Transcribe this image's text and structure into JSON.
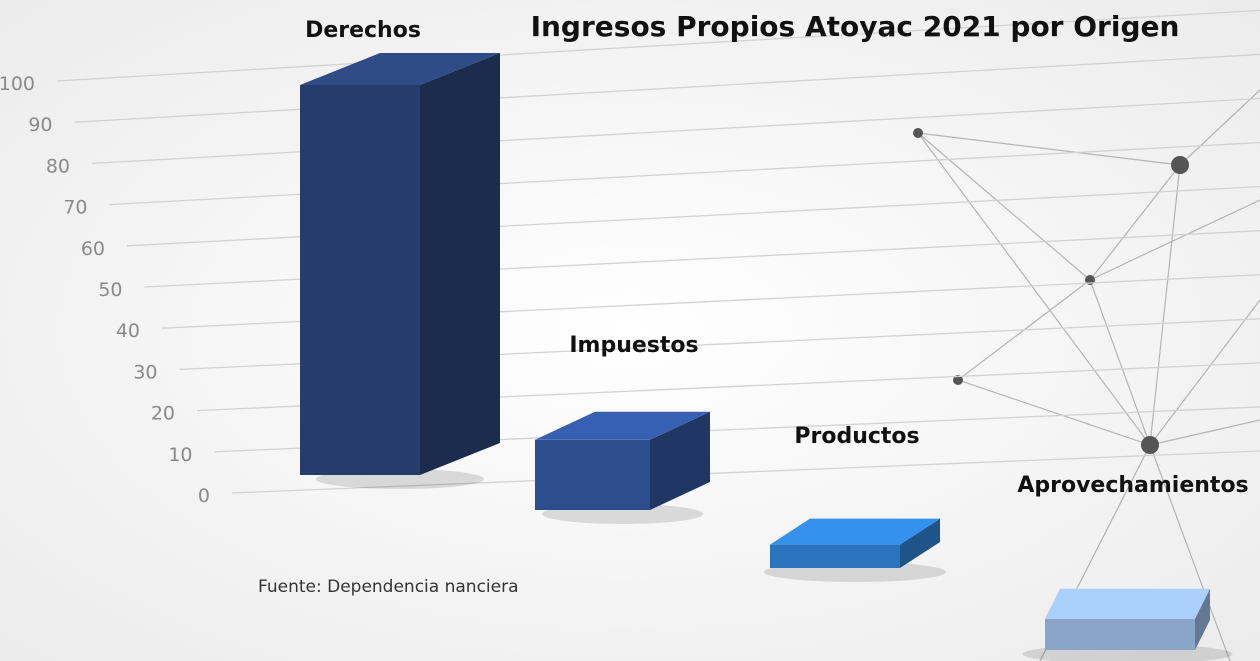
{
  "chart_data": {
    "type": "bar3d",
    "title": "Ingresos Propios Atoyac 2021 por Origen",
    "categories": [
      "Derechos",
      "Impuestos",
      "Productos",
      "Aprovechamientos"
    ],
    "values": [
      100,
      18,
      6,
      8
    ],
    "colors": [
      "#263d6b",
      "#2d4d8e",
      "#2a74bd",
      "#89a6c9"
    ],
    "ylim": [
      0,
      100
    ],
    "yticks": [
      0,
      10,
      20,
      30,
      40,
      50,
      60,
      70,
      80,
      90,
      100
    ],
    "grid": true,
    "source": "Fuente: Dependencia nanciera"
  }
}
